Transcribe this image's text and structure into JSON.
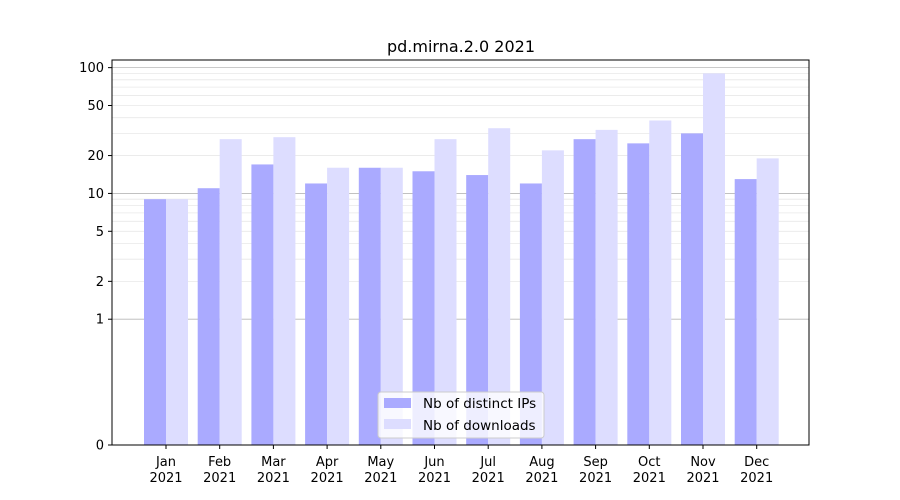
{
  "chart_data": {
    "type": "bar",
    "title": "pd.mirna.2.0 2021",
    "xlabel": "",
    "ylabel": "",
    "y_scale": "symlog",
    "ylim": [
      0,
      115
    ],
    "y_ticks": [
      0,
      1,
      2,
      5,
      10,
      20,
      50,
      100
    ],
    "y_tick_labels": [
      "0",
      "1",
      "2",
      "5",
      "10",
      "20",
      "50",
      "100"
    ],
    "grid": "y",
    "legend_placement": "bottom-center",
    "categories": [
      [
        "Jan",
        "2021"
      ],
      [
        "Feb",
        "2021"
      ],
      [
        "Mar",
        "2021"
      ],
      [
        "Apr",
        "2021"
      ],
      [
        "May",
        "2021"
      ],
      [
        "Jun",
        "2021"
      ],
      [
        "Jul",
        "2021"
      ],
      [
        "Aug",
        "2021"
      ],
      [
        "Sep",
        "2021"
      ],
      [
        "Oct",
        "2021"
      ],
      [
        "Nov",
        "2021"
      ],
      [
        "Dec",
        "2021"
      ]
    ],
    "series": [
      {
        "name": "Nb of distinct IPs",
        "color": "#aaaaff",
        "values": [
          9,
          11,
          17,
          12,
          16,
          15,
          14,
          12,
          27,
          25,
          30,
          13
        ]
      },
      {
        "name": "Nb of downloads",
        "color": "#ddddff",
        "values": [
          9,
          27,
          28,
          16,
          16,
          27,
          33,
          22,
          32,
          38,
          90,
          19
        ]
      }
    ]
  }
}
